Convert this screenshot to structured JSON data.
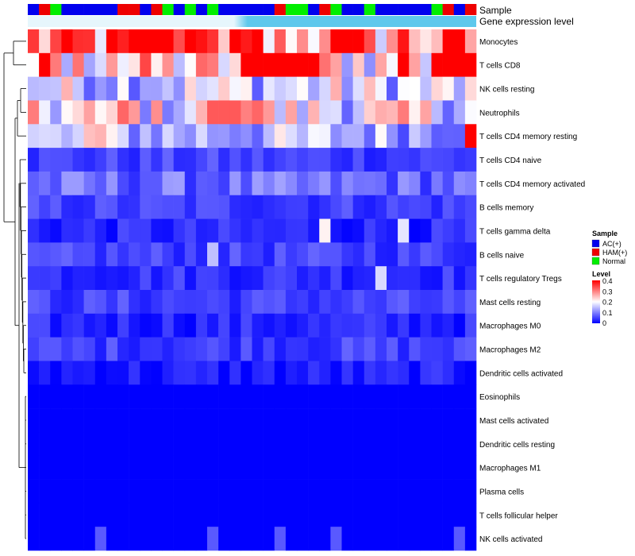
{
  "chart_data": {
    "type": "heatmap",
    "title": "",
    "annotation_labels": {
      "sample": "Sample",
      "gene": "Gene expression level"
    },
    "sample_classes": [
      "AC",
      "HAM",
      "Normal",
      "AC",
      "AC",
      "AC",
      "AC",
      "AC",
      "HAM",
      "HAM",
      "AC",
      "HAM",
      "Normal",
      "AC",
      "Normal",
      "AC",
      "Normal",
      "AC",
      "AC",
      "AC",
      "AC",
      "AC",
      "HAM",
      "Normal",
      "Normal",
      "AC",
      "HAM",
      "Normal",
      "AC",
      "AC",
      "Normal",
      "AC",
      "AC",
      "AC",
      "AC",
      "AC",
      "Normal",
      "HAM",
      "AC",
      "HAM"
    ],
    "sample_colors": {
      "AC": "#0000ee",
      "HAM": "#ee0000",
      "Normal": "#00ee00"
    },
    "gene_bar_colors": [
      "#e6f6fc",
      "#5ec8ec"
    ],
    "gene_bar_split": 0.46,
    "rows": [
      "Monocytes",
      "T cells CD8",
      "NK cells resting",
      "Neutrophils",
      "T cells CD4 memory resting",
      "T cells CD4 naive",
      "T cells CD4 memory activated",
      "B cells memory",
      "T cells gamma delta",
      "B cells naive",
      "T cells regulatory  Tregs",
      "Mast cells resting",
      "Macrophages M0",
      "Macrophages M2",
      "Dendritic cells activated",
      "Eosinophils",
      "Mast cells activated",
      "Dendritic cells resting",
      "Macrophages M1",
      "Plasma cells",
      "T cells follicular helper",
      "NK cells activated"
    ],
    "row_base": [
      0.3,
      0.22,
      0.17,
      0.19,
      0.14,
      0.05,
      0.08,
      0.05,
      0.03,
      0.05,
      0.04,
      0.05,
      0.03,
      0.05,
      0.02,
      0.0,
      0.0,
      0.0,
      0.0,
      0.0,
      0.0,
      0.0
    ],
    "hot_cells": {
      "0": [
        [
          10,
          0.4
        ],
        [
          11,
          0.4
        ],
        [
          12,
          0.4
        ],
        [
          13,
          0.34
        ],
        [
          14,
          0.4
        ],
        [
          16,
          0.36
        ],
        [
          18,
          0.4
        ],
        [
          19,
          0.38
        ],
        [
          24,
          0.29
        ],
        [
          26,
          0.29
        ],
        [
          30,
          0.34
        ]
      ],
      "1": [
        [
          1,
          0.4
        ],
        [
          19,
          0.4
        ],
        [
          20,
          0.4
        ],
        [
          21,
          0.4
        ],
        [
          22,
          0.4
        ],
        [
          23,
          0.4
        ],
        [
          24,
          0.4
        ],
        [
          25,
          0.4
        ],
        [
          33,
          0.4
        ],
        [
          36,
          0.4
        ],
        [
          37,
          0.4
        ],
        [
          38,
          0.4
        ],
        [
          39,
          0.4
        ],
        [
          4,
          0.31
        ],
        [
          7,
          0.28
        ]
      ],
      "3": [
        [
          8,
          0.32
        ],
        [
          9,
          0.28
        ],
        [
          16,
          0.33
        ],
        [
          17,
          0.33
        ],
        [
          18,
          0.33
        ],
        [
          19,
          0.3
        ],
        [
          20,
          0.32
        ],
        [
          21,
          0.28
        ]
      ],
      "4": [
        [
          39,
          0.4
        ],
        [
          5,
          0.25
        ],
        [
          6,
          0.26
        ]
      ],
      "8": [
        [
          26,
          0.21
        ],
        [
          33,
          0.18
        ]
      ],
      "9": [
        [
          16,
          0.15
        ]
      ],
      "10": [
        [
          31,
          0.17
        ]
      ],
      "21": [
        [
          6,
          0.07
        ],
        [
          16,
          0.07
        ],
        [
          22,
          0.07
        ],
        [
          27,
          0.07
        ],
        [
          38,
          0.07
        ]
      ]
    },
    "legend": {
      "sample_title": "Sample",
      "sample_entries": [
        "AC(+)",
        "HAM(+)",
        "Normal"
      ],
      "sample_entry_colors": [
        "#0000ee",
        "#ee0000",
        "#00ee00"
      ],
      "level_title": "Level",
      "level_ticks": [
        "0.4",
        "0.3",
        "0.2",
        "0.1",
        "0"
      ],
      "level_range": [
        0,
        0.4
      ]
    },
    "color_scale": {
      "low": "#0000ff",
      "mid": "#ffffff",
      "high": "#ff0000"
    }
  }
}
